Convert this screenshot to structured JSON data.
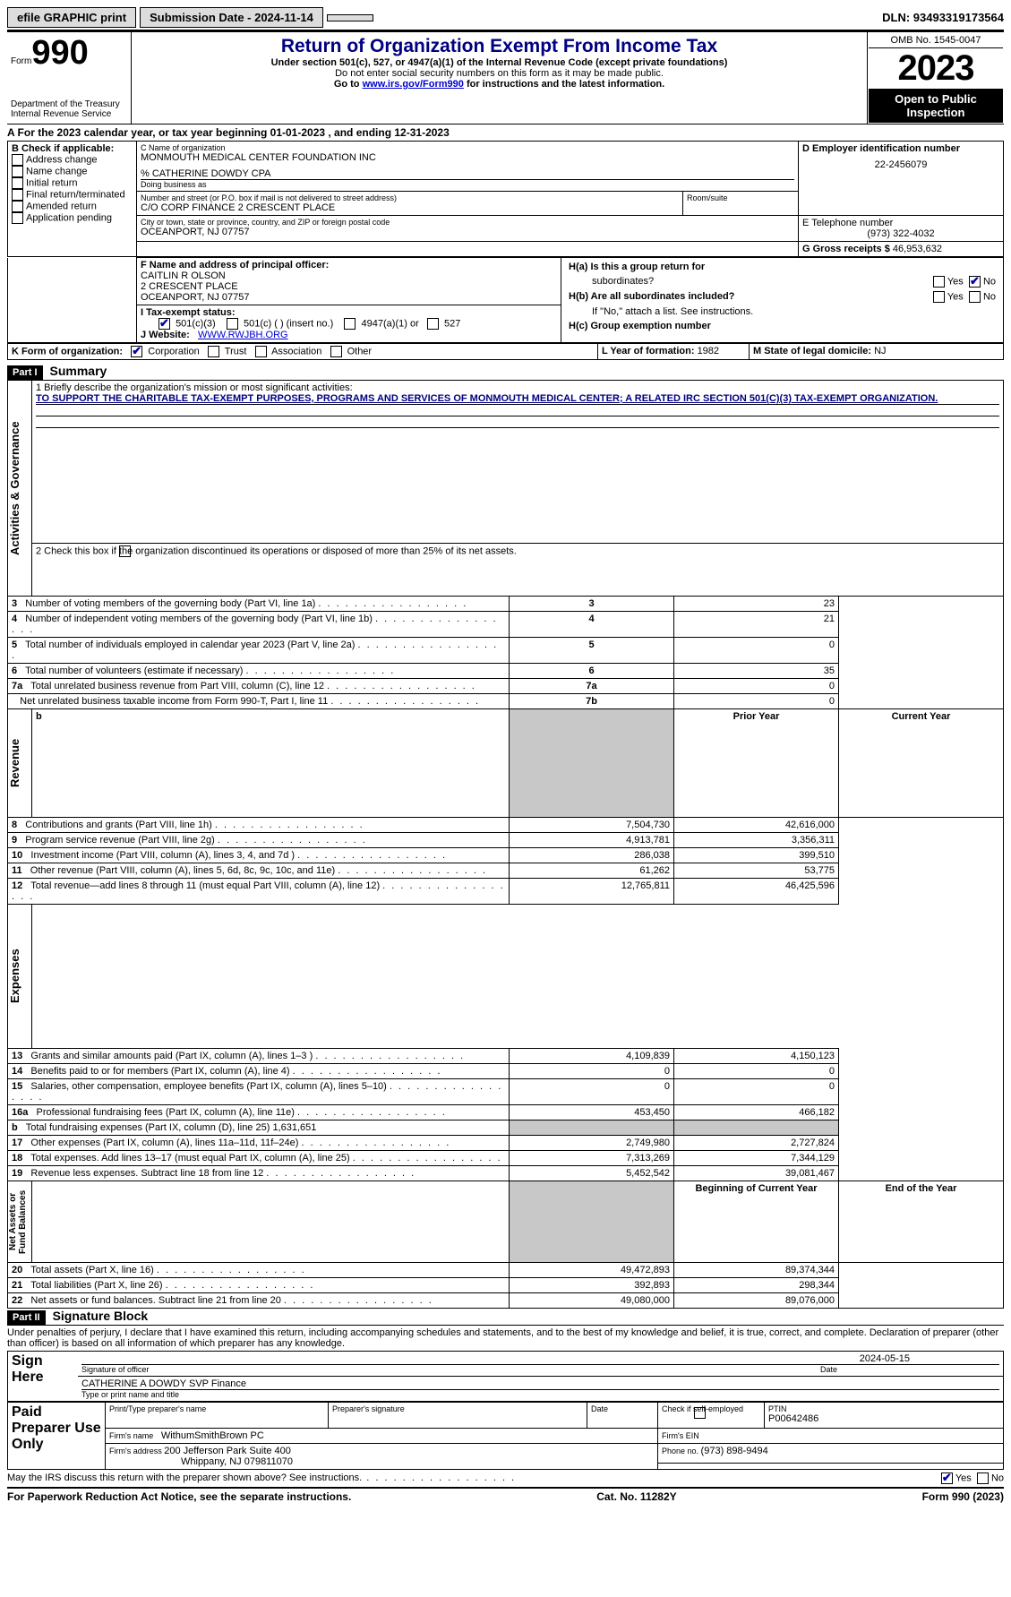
{
  "topbar": {
    "efile_label": "efile GRAPHIC print",
    "submission_label": "Submission Date - 2024-11-14",
    "dln_label": "DLN: 93493319173564"
  },
  "header": {
    "form_prefix": "Form",
    "form_number": "990",
    "title": "Return of Organization Exempt From Income Tax",
    "subtitle": "Under section 501(c), 527, or 4947(a)(1) of the Internal Revenue Code (except private foundations)",
    "warn": "Do not enter social security numbers on this form as it may be made public.",
    "goto_prefix": "Go to ",
    "goto_link": "www.irs.gov/Form990",
    "goto_suffix": " for instructions and the latest information.",
    "treasury1": "Department of the Treasury",
    "treasury2": "Internal Revenue Service",
    "omb": "OMB No. 1545-0047",
    "year": "2023",
    "inspect": "Open to Public Inspection"
  },
  "section_a": "A For the 2023 calendar year, or tax year beginning 01-01-2023   , and ending 12-31-2023",
  "box_b": {
    "title": "B Check if applicable:",
    "addr": "Address change",
    "name": "Name change",
    "initial": "Initial return",
    "final": "Final return/terminated",
    "amended": "Amended return",
    "app": "Application pending"
  },
  "box_c": {
    "label": "C Name of organization",
    "name": "MONMOUTH MEDICAL CENTER FOUNDATION INC",
    "care_of": "% CATHERINE DOWDY CPA",
    "dba_label": "Doing business as",
    "street_label": "Number and street (or P.O. box if mail is not delivered to street address)",
    "street": "C/O CORP FINANCE 2 CRESCENT PLACE",
    "room_label": "Room/suite",
    "city_label": "City or town, state or province, country, and ZIP or foreign postal code",
    "city": "OCEANPORT, NJ  07757"
  },
  "box_d": {
    "label": "D Employer identification number",
    "value": "22-2456079"
  },
  "box_e": {
    "label": "E Telephone number",
    "value": "(973) 322-4032"
  },
  "box_g": {
    "label": "G Gross receipts $",
    "value": "46,953,632"
  },
  "box_f": {
    "label": "F  Name and address of principal officer:",
    "l1": "CAITLIN R OLSON",
    "l2": "2 CRESCENT PLACE",
    "l3": "OCEANPORT, NJ  07757"
  },
  "box_h": {
    "ha_label": "H(a)  Is this a group return for",
    "ha_sub": "subordinates?",
    "hb_label": "H(b)  Are all subordinates included?",
    "hb_note": "If \"No,\" attach a list. See instructions.",
    "hc_label": "H(c)  Group exemption number ",
    "yes": "Yes",
    "no": "No"
  },
  "box_i": {
    "label": "I   Tax-exempt status:",
    "c3": "501(c)(3)",
    "cblank": "501(c) (  ) (insert no.)",
    "c4947": "4947(a)(1) or",
    "c527": "527"
  },
  "box_j": {
    "label": "J   Website: ",
    "value": "WWW.RWJBH.ORG"
  },
  "box_k": {
    "label": "K Form of organization:",
    "corp": "Corporation",
    "trust": "Trust",
    "assoc": "Association",
    "other": "Other"
  },
  "box_l": {
    "label": "L Year of formation: ",
    "value": "1982"
  },
  "box_m": {
    "label": "M State of legal domicile: ",
    "value": "NJ"
  },
  "part1": {
    "label": "Part I",
    "title": "Summary"
  },
  "summary": {
    "mission_prompt": "1   Briefly describe the organization's mission or most significant activities:",
    "mission": "TO SUPPORT THE CHARITABLE TAX-EXEMPT PURPOSES, PROGRAMS AND SERVICES OF MONMOUTH MEDICAL CENTER; A RELATED IRC SECTION 501(C)(3) TAX-EXEMPT ORGANIZATION.",
    "line2": "2   Check this box         if the organization discontinued its operations or disposed of more than 25% of its net assets.",
    "lines_ag": [
      {
        "n": "3",
        "t": "Number of voting members of the governing body (Part VI, line 1a)",
        "k": "3",
        "v": "23"
      },
      {
        "n": "4",
        "t": "Number of independent voting members of the governing body (Part VI, line 1b)",
        "k": "4",
        "v": "21"
      },
      {
        "n": "5",
        "t": "Total number of individuals employed in calendar year 2023 (Part V, line 2a)",
        "k": "5",
        "v": "0"
      },
      {
        "n": "6",
        "t": "Total number of volunteers (estimate if necessary)",
        "k": "6",
        "v": "35"
      },
      {
        "n": "7a",
        "t": "Total unrelated business revenue from Part VIII, column (C), line 12",
        "k": "7a",
        "v": "0"
      },
      {
        "n": "",
        "t": "Net unrelated business taxable income from Form 990-T, Part I, line 11",
        "k": "7b",
        "v": "0"
      }
    ],
    "col_headers": {
      "b": "b",
      "prior": "Prior Year",
      "current": "Current Year"
    },
    "revenue": [
      {
        "n": "8",
        "t": "Contributions and grants (Part VIII, line 1h)",
        "p": "7,504,730",
        "c": "42,616,000"
      },
      {
        "n": "9",
        "t": "Program service revenue (Part VIII, line 2g)",
        "p": "4,913,781",
        "c": "3,356,311"
      },
      {
        "n": "10",
        "t": "Investment income (Part VIII, column (A), lines 3, 4, and 7d )",
        "p": "286,038",
        "c": "399,510"
      },
      {
        "n": "11",
        "t": "Other revenue (Part VIII, column (A), lines 5, 6d, 8c, 9c, 10c, and 11e)",
        "p": "61,262",
        "c": "53,775"
      },
      {
        "n": "12",
        "t": "Total revenue—add lines 8 through 11 (must equal Part VIII, column (A), line 12)",
        "p": "12,765,811",
        "c": "46,425,596"
      }
    ],
    "expenses": [
      {
        "n": "13",
        "t": "Grants and similar amounts paid (Part IX, column (A), lines 1–3 )",
        "p": "4,109,839",
        "c": "4,150,123"
      },
      {
        "n": "14",
        "t": "Benefits paid to or for members (Part IX, column (A), line 4)",
        "p": "0",
        "c": "0"
      },
      {
        "n": "15",
        "t": "Salaries, other compensation, employee benefits (Part IX, column (A), lines 5–10)",
        "p": "0",
        "c": "0"
      },
      {
        "n": "16a",
        "t": "Professional fundraising fees (Part IX, column (A), line 11e)",
        "p": "453,450",
        "c": "466,182"
      },
      {
        "n": "b",
        "t": "Total fundraising expenses (Part IX, column (D), line 25) 1,631,651",
        "p": "",
        "c": "",
        "shaded": true
      },
      {
        "n": "17",
        "t": "Other expenses (Part IX, column (A), lines 11a–11d, 11f–24e)",
        "p": "2,749,980",
        "c": "2,727,824"
      },
      {
        "n": "18",
        "t": "Total expenses. Add lines 13–17 (must equal Part IX, column (A), line 25)",
        "p": "7,313,269",
        "c": "7,344,129"
      },
      {
        "n": "19",
        "t": "Revenue less expenses. Subtract line 18 from line 12",
        "p": "5,452,542",
        "c": "39,081,467"
      }
    ],
    "net_headers": {
      "beg": "Beginning of Current Year",
      "end": "End of the Year"
    },
    "net": [
      {
        "n": "20",
        "t": "Total assets (Part X, line 16)",
        "p": "49,472,893",
        "c": "89,374,344"
      },
      {
        "n": "21",
        "t": "Total liabilities (Part X, line 26)",
        "p": "392,893",
        "c": "298,344"
      },
      {
        "n": "22",
        "t": "Net assets or fund balances. Subtract line 21 from line 20",
        "p": "49,080,000",
        "c": "89,076,000"
      }
    ],
    "vlabels": {
      "ag": "Activities & Governance",
      "rev": "Revenue",
      "exp": "Expenses",
      "net": "Net Assets or\nFund Balances"
    }
  },
  "part2": {
    "label": "Part II",
    "title": "Signature Block"
  },
  "perjury": "Under penalties of perjury, I declare that I have examined this return, including accompanying schedules and statements, and to the best of my knowledge and belief, it is true, correct, and complete. Declaration of preparer (other than officer) is based on all information of which preparer has any knowledge.",
  "sign": {
    "here": "Sign Here",
    "sig_label": "Signature of officer",
    "officer": "CATHERINE A DOWDY  SVP Finance",
    "type_label": "Type or print name and title",
    "date_label": "Date",
    "date": "2024-05-15"
  },
  "paid": {
    "title": "Paid Preparer Use Only",
    "print_label": "Print/Type preparer's name",
    "sig_label": "Preparer's signature",
    "date_label": "Date",
    "check_label": "Check         if self-employed",
    "ptin_label": "PTIN",
    "ptin": "P00642486",
    "firm_name_label": "Firm's name   ",
    "firm_name": "WithumSmithBrown PC",
    "firm_ein_label": "Firm's EIN ",
    "firm_addr_label": "Firm's address ",
    "firm_addr1": "200 Jefferson Park Suite 400",
    "firm_addr2": "Whippany, NJ  079811070",
    "phone_label": "Phone no. ",
    "phone": "(973) 898-9494"
  },
  "discuss": "May the IRS discuss this return with the preparer shown above? See instructions.",
  "footer": {
    "left": "For Paperwork Reduction Act Notice, see the separate instructions.",
    "mid": "Cat. No. 11282Y",
    "right": "Form 990 (2023)"
  }
}
